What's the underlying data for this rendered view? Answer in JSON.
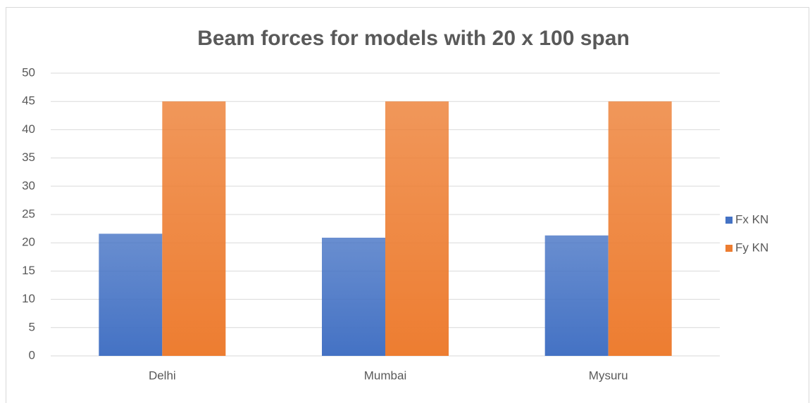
{
  "chart_data": {
    "type": "bar",
    "title": "Beam forces for models with 20 x 100 span",
    "categories": [
      "Delhi",
      "Mumbai",
      "Mysuru"
    ],
    "series": [
      {
        "name": "Fx KN",
        "color": "#4472c4",
        "values": [
          21.6,
          20.9,
          21.3
        ]
      },
      {
        "name": "Fy KN",
        "color": "#ed7d31",
        "values": [
          45,
          45,
          45
        ]
      }
    ],
    "ylim": [
      0,
      50
    ],
    "yticks": [
      0,
      5,
      10,
      15,
      20,
      25,
      30,
      35,
      40,
      45,
      50
    ],
    "grid": true,
    "legend": "right"
  }
}
